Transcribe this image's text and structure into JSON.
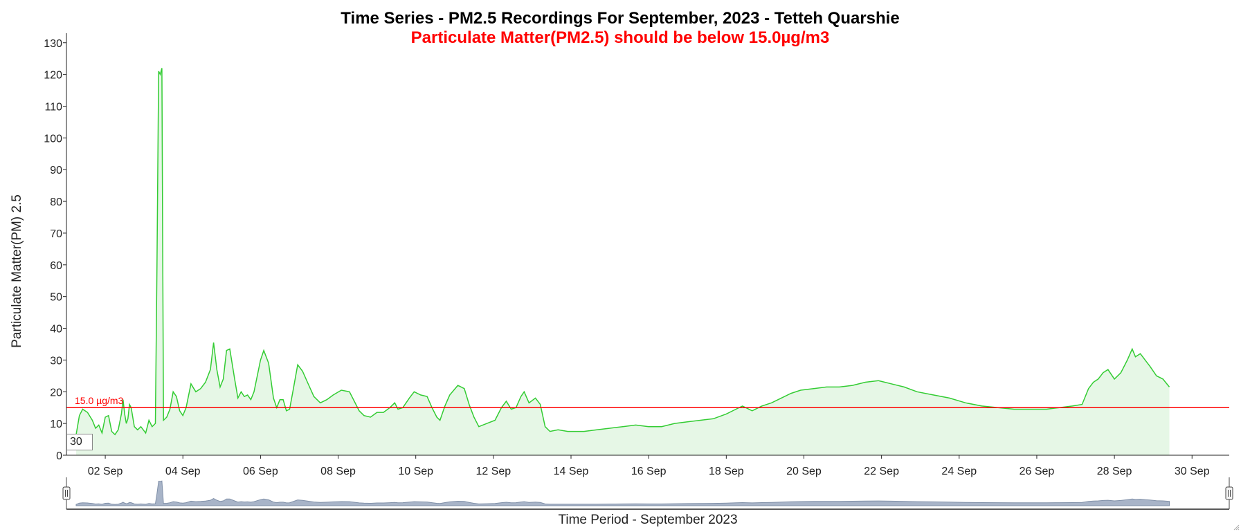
{
  "chart_data": {
    "type": "area",
    "title": "Time Series - PM2.5 Recordings For September, 2023 - Tetteh Quarshie",
    "subtitle": "Particulate Matter(PM2.5) should be below 15.0µg/m3",
    "xlabel": "Time Period - September 2023",
    "ylabel": "Particulate Matter(PM) 2.5",
    "xlim": [
      "2023-09-01T00:00",
      "2023-09-30T23:00"
    ],
    "ylim": [
      0,
      133
    ],
    "yticks": [
      0,
      10,
      20,
      30,
      40,
      50,
      60,
      70,
      80,
      90,
      100,
      110,
      120,
      130
    ],
    "xtick_labels": [
      "02 Sep",
      "04 Sep",
      "06 Sep",
      "08 Sep",
      "10 Sep",
      "12 Sep",
      "14 Sep",
      "16 Sep",
      "18 Sep",
      "20 Sep",
      "22 Sep",
      "24 Sep",
      "26 Sep",
      "28 Sep",
      "30 Sep"
    ],
    "xtick_dates": [
      "2023-09-02",
      "2023-09-04",
      "2023-09-06",
      "2023-09-08",
      "2023-09-10",
      "2023-09-12",
      "2023-09-14",
      "2023-09-16",
      "2023-09-18",
      "2023-09-20",
      "2023-09-22",
      "2023-09-24",
      "2023-09-26",
      "2023-09-28",
      "2023-09-30"
    ],
    "threshold": {
      "value": 15.0,
      "label": "15.0 µg/m3",
      "color": "#ff0000"
    },
    "series": [
      {
        "color": "#33cc33",
        "fill": "#e6f7e6",
        "points": [
          [
            "2023-09-01T06:00",
            6.5
          ],
          [
            "2023-09-01T08:00",
            12.5
          ],
          [
            "2023-09-01T10:00",
            14.5
          ],
          [
            "2023-09-01T13:00",
            13.5
          ],
          [
            "2023-09-01T16:00",
            11.0
          ],
          [
            "2023-09-01T18:00",
            8.5
          ],
          [
            "2023-09-01T20:00",
            9.5
          ],
          [
            "2023-09-01T22:00",
            7.0
          ],
          [
            "2023-09-02T00:00",
            12.0
          ],
          [
            "2023-09-02T02:00",
            12.5
          ],
          [
            "2023-09-02T04:00",
            7.5
          ],
          [
            "2023-09-02T06:00",
            6.5
          ],
          [
            "2023-09-02T08:00",
            8.0
          ],
          [
            "2023-09-02T10:00",
            13.0
          ],
          [
            "2023-09-02T11:00",
            17.5
          ],
          [
            "2023-09-02T12:00",
            13.0
          ],
          [
            "2023-09-02T13:00",
            10.0
          ],
          [
            "2023-09-02T14:00",
            11.5
          ],
          [
            "2023-09-02T15:00",
            16.0
          ],
          [
            "2023-09-02T16:00",
            15.0
          ],
          [
            "2023-09-02T18:00",
            9.0
          ],
          [
            "2023-09-02T20:00",
            8.0
          ],
          [
            "2023-09-02T22:00",
            9.0
          ],
          [
            "2023-09-03T01:00",
            7.0
          ],
          [
            "2023-09-03T03:00",
            11.0
          ],
          [
            "2023-09-03T05:00",
            9.0
          ],
          [
            "2023-09-03T07:00",
            10.0
          ],
          [
            "2023-09-03T08:00",
            60.0
          ],
          [
            "2023-09-03T09:00",
            121.0
          ],
          [
            "2023-09-03T10:00",
            120.0
          ],
          [
            "2023-09-03T11:00",
            122.0
          ],
          [
            "2023-09-03T12:00",
            11.0
          ],
          [
            "2023-09-03T14:00",
            12.0
          ],
          [
            "2023-09-03T16:00",
            14.5
          ],
          [
            "2023-09-03T18:00",
            20.0
          ],
          [
            "2023-09-03T20:00",
            18.5
          ],
          [
            "2023-09-03T22:00",
            14.0
          ],
          [
            "2023-09-04T00:00",
            12.5
          ],
          [
            "2023-09-04T02:00",
            15.0
          ],
          [
            "2023-09-04T05:00",
            22.5
          ],
          [
            "2023-09-04T08:00",
            20.0
          ],
          [
            "2023-09-04T11:00",
            21.0
          ],
          [
            "2023-09-04T14:00",
            23.0
          ],
          [
            "2023-09-04T17:00",
            27.0
          ],
          [
            "2023-09-04T19:00",
            35.5
          ],
          [
            "2023-09-04T21:00",
            27.0
          ],
          [
            "2023-09-04T23:00",
            21.5
          ],
          [
            "2023-09-05T01:00",
            24.0
          ],
          [
            "2023-09-05T03:00",
            33.0
          ],
          [
            "2023-09-05T05:00",
            33.5
          ],
          [
            "2023-09-05T08:00",
            24.0
          ],
          [
            "2023-09-05T10:00",
            18.0
          ],
          [
            "2023-09-05T12:00",
            20.0
          ],
          [
            "2023-09-05T14:00",
            18.5
          ],
          [
            "2023-09-05T16:00",
            19.0
          ],
          [
            "2023-09-05T18:00",
            17.5
          ],
          [
            "2023-09-05T20:00",
            20.0
          ],
          [
            "2023-09-06T00:00",
            30.0
          ],
          [
            "2023-09-06T02:00",
            33.0
          ],
          [
            "2023-09-06T05:00",
            29.0
          ],
          [
            "2023-09-06T08:00",
            18.0
          ],
          [
            "2023-09-06T10:00",
            15.0
          ],
          [
            "2023-09-06T12:00",
            17.5
          ],
          [
            "2023-09-06T14:00",
            17.5
          ],
          [
            "2023-09-06T16:00",
            14.0
          ],
          [
            "2023-09-06T18:00",
            14.5
          ],
          [
            "2023-09-06T20:00",
            20.0
          ],
          [
            "2023-09-06T23:00",
            28.5
          ],
          [
            "2023-09-07T02:00",
            26.5
          ],
          [
            "2023-09-07T05:00",
            23.0
          ],
          [
            "2023-09-07T09:00",
            18.5
          ],
          [
            "2023-09-07T13:00",
            16.5
          ],
          [
            "2023-09-07T17:00",
            17.5
          ],
          [
            "2023-09-07T21:00",
            19.0
          ],
          [
            "2023-09-08T02:00",
            20.5
          ],
          [
            "2023-09-08T07:00",
            20.0
          ],
          [
            "2023-09-08T10:00",
            17.0
          ],
          [
            "2023-09-08T13:00",
            14.0
          ],
          [
            "2023-09-08T16:00",
            12.5
          ],
          [
            "2023-09-08T20:00",
            12.0
          ],
          [
            "2023-09-09T00:00",
            13.5
          ],
          [
            "2023-09-09T04:00",
            13.5
          ],
          [
            "2023-09-09T08:00",
            15.0
          ],
          [
            "2023-09-09T11:00",
            16.5
          ],
          [
            "2023-09-09T13:00",
            14.5
          ],
          [
            "2023-09-09T16:00",
            15.0
          ],
          [
            "2023-09-09T20:00",
            18.0
          ],
          [
            "2023-09-09T23:00",
            20.0
          ],
          [
            "2023-09-10T03:00",
            19.0
          ],
          [
            "2023-09-10T07:00",
            18.5
          ],
          [
            "2023-09-10T10:00",
            15.0
          ],
          [
            "2023-09-10T13:00",
            12.0
          ],
          [
            "2023-09-10T15:00",
            11.0
          ],
          [
            "2023-09-10T18:00",
            15.5
          ],
          [
            "2023-09-10T21:00",
            19.0
          ],
          [
            "2023-09-11T02:00",
            22.0
          ],
          [
            "2023-09-11T06:00",
            21.0
          ],
          [
            "2023-09-11T09:00",
            16.0
          ],
          [
            "2023-09-11T12:00",
            12.0
          ],
          [
            "2023-09-11T15:00",
            9.0
          ],
          [
            "2023-09-11T20:00",
            10.0
          ],
          [
            "2023-09-12T01:00",
            11.0
          ],
          [
            "2023-09-12T05:00",
            15.0
          ],
          [
            "2023-09-12T08:00",
            17.0
          ],
          [
            "2023-09-12T11:00",
            14.5
          ],
          [
            "2023-09-12T14:00",
            15.0
          ],
          [
            "2023-09-12T17:00",
            18.5
          ],
          [
            "2023-09-12T19:00",
            20.0
          ],
          [
            "2023-09-12T22:00",
            16.5
          ],
          [
            "2023-09-13T02:00",
            18.0
          ],
          [
            "2023-09-13T05:00",
            16.0
          ],
          [
            "2023-09-13T08:00",
            9.0
          ],
          [
            "2023-09-13T11:00",
            7.5
          ],
          [
            "2023-09-13T16:00",
            8.0
          ],
          [
            "2023-09-13T22:00",
            7.5
          ],
          [
            "2023-09-14T08:00",
            7.5
          ],
          [
            "2023-09-14T16:00",
            8.0
          ],
          [
            "2023-09-15T00:00",
            8.5
          ],
          [
            "2023-09-15T08:00",
            9.0
          ],
          [
            "2023-09-15T16:00",
            9.5
          ],
          [
            "2023-09-16T00:00",
            9.0
          ],
          [
            "2023-09-16T08:00",
            9.0
          ],
          [
            "2023-09-16T16:00",
            10.0
          ],
          [
            "2023-09-17T00:00",
            10.5
          ],
          [
            "2023-09-17T08:00",
            11.0
          ],
          [
            "2023-09-17T16:00",
            11.5
          ],
          [
            "2023-09-18T00:00",
            13.0
          ],
          [
            "2023-09-18T06:00",
            14.5
          ],
          [
            "2023-09-18T10:00",
            15.5
          ],
          [
            "2023-09-18T16:00",
            14.0
          ],
          [
            "2023-09-18T22:00",
            15.5
          ],
          [
            "2023-09-19T04:00",
            16.5
          ],
          [
            "2023-09-19T10:00",
            18.0
          ],
          [
            "2023-09-19T16:00",
            19.5
          ],
          [
            "2023-09-19T22:00",
            20.5
          ],
          [
            "2023-09-20T06:00",
            21.0
          ],
          [
            "2023-09-20T14:00",
            21.5
          ],
          [
            "2023-09-20T22:00",
            21.5
          ],
          [
            "2023-09-21T06:00",
            22.0
          ],
          [
            "2023-09-21T14:00",
            23.0
          ],
          [
            "2023-09-21T22:00",
            23.5
          ],
          [
            "2023-09-22T06:00",
            22.5
          ],
          [
            "2023-09-22T14:00",
            21.5
          ],
          [
            "2023-09-22T22:00",
            20.0
          ],
          [
            "2023-09-23T08:00",
            19.0
          ],
          [
            "2023-09-23T18:00",
            18.0
          ],
          [
            "2023-09-24T04:00",
            16.5
          ],
          [
            "2023-09-24T14:00",
            15.5
          ],
          [
            "2023-09-25T00:00",
            15.0
          ],
          [
            "2023-09-25T10:00",
            14.5
          ],
          [
            "2023-09-25T20:00",
            14.5
          ],
          [
            "2023-09-26T06:00",
            14.5
          ],
          [
            "2023-09-26T14:00",
            15.0
          ],
          [
            "2023-09-26T22:00",
            15.5
          ],
          [
            "2023-09-27T04:00",
            16.0
          ],
          [
            "2023-09-27T08:00",
            21.0
          ],
          [
            "2023-09-27T11:00",
            23.0
          ],
          [
            "2023-09-27T14:00",
            24.0
          ],
          [
            "2023-09-27T17:00",
            26.0
          ],
          [
            "2023-09-27T20:00",
            27.0
          ],
          [
            "2023-09-28T00:00",
            24.0
          ],
          [
            "2023-09-28T04:00",
            26.0
          ],
          [
            "2023-09-28T08:00",
            30.0
          ],
          [
            "2023-09-28T11:00",
            33.5
          ],
          [
            "2023-09-28T13:00",
            31.0
          ],
          [
            "2023-09-28T16:00",
            32.0
          ],
          [
            "2023-09-28T19:00",
            30.0
          ],
          [
            "2023-09-28T22:00",
            28.0
          ],
          [
            "2023-09-29T02:00",
            25.0
          ],
          [
            "2023-09-29T06:00",
            24.0
          ],
          [
            "2023-09-29T10:00",
            21.5
          ]
        ]
      }
    ]
  },
  "navigator": {
    "range_input_value": "30",
    "fill": "#a8b4c8",
    "stroke": "#8090a8"
  },
  "colors": {
    "axis": "#222222",
    "accent": "#33cc33",
    "warning": "#ff0000"
  }
}
